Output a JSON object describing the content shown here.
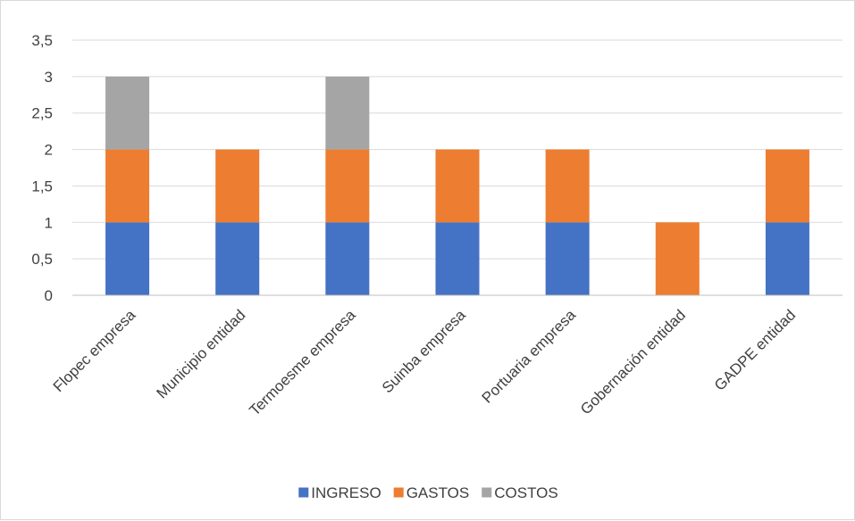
{
  "chart_data": {
    "type": "bar",
    "stacked": true,
    "title": "",
    "xlabel": "",
    "ylabel": "",
    "categories": [
      "Flopec empresa",
      "Municipio entidad",
      "Termoesme empresa",
      "Suinba empresa",
      "Portuaria empresa",
      "Gobernación entidad",
      "GADPE entidad"
    ],
    "series": [
      {
        "name": "INGRESO",
        "color": "#4472c4",
        "values": [
          1,
          1,
          1,
          1,
          1,
          0,
          1
        ]
      },
      {
        "name": "GASTOS",
        "color": "#ed7d31",
        "values": [
          1,
          1,
          1,
          1,
          1,
          1,
          1
        ]
      },
      {
        "name": "COSTOS",
        "color": "#a5a5a5",
        "values": [
          1,
          0,
          1,
          0,
          0,
          0,
          0
        ]
      }
    ],
    "ylim": [
      0,
      3.5
    ],
    "yticks": [
      "0",
      "0,5",
      "1",
      "1,5",
      "2",
      "2,5",
      "3",
      "3,5"
    ],
    "grid": true,
    "legend_position": "bottom"
  }
}
